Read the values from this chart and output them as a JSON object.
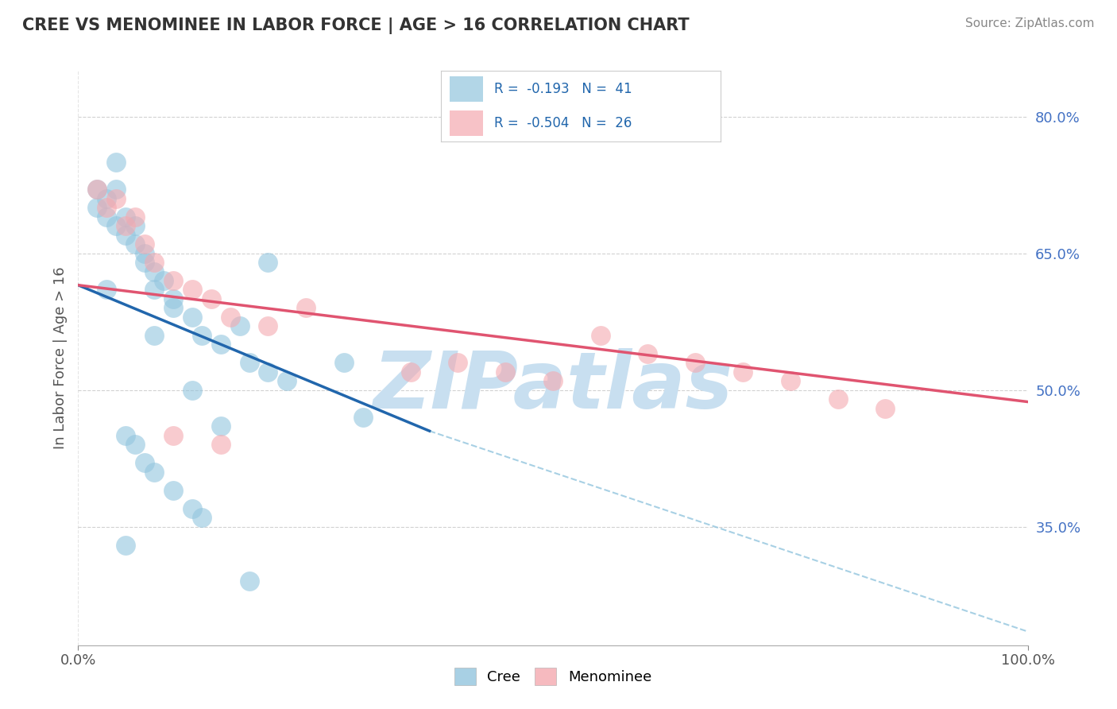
{
  "title": "CREE VS MENOMINEE IN LABOR FORCE | AGE > 16 CORRELATION CHART",
  "source": "Source: ZipAtlas.com",
  "ylabel": "In Labor Force | Age > 16",
  "xlim": [
    0.0,
    1.0
  ],
  "ylim": [
    0.22,
    0.85
  ],
  "cree_R": -0.193,
  "cree_N": 41,
  "menominee_R": -0.504,
  "menominee_N": 26,
  "cree_color": "#92c5de",
  "menominee_color": "#f4a9b0",
  "cree_line_color": "#2166ac",
  "menominee_line_color": "#e05470",
  "dashed_line_color": "#92c5de",
  "background_color": "#ffffff",
  "watermark_color": "#c8dff0",
  "grid_color": "#cccccc",
  "cree_scatter_x": [
    0.02,
    0.02,
    0.03,
    0.03,
    0.04,
    0.04,
    0.05,
    0.05,
    0.06,
    0.06,
    0.07,
    0.07,
    0.08,
    0.08,
    0.09,
    0.1,
    0.1,
    0.12,
    0.13,
    0.15,
    0.17,
    0.18,
    0.2,
    0.22,
    0.28,
    0.3,
    0.05,
    0.06,
    0.07,
    0.08,
    0.1,
    0.12,
    0.13,
    0.05,
    0.15,
    0.2,
    0.18,
    0.12,
    0.04,
    0.03,
    0.08
  ],
  "cree_scatter_y": [
    0.72,
    0.7,
    0.71,
    0.69,
    0.68,
    0.72,
    0.67,
    0.69,
    0.66,
    0.68,
    0.64,
    0.65,
    0.63,
    0.61,
    0.62,
    0.6,
    0.59,
    0.58,
    0.56,
    0.55,
    0.57,
    0.53,
    0.52,
    0.51,
    0.53,
    0.47,
    0.45,
    0.44,
    0.42,
    0.41,
    0.39,
    0.37,
    0.36,
    0.33,
    0.46,
    0.64,
    0.29,
    0.5,
    0.75,
    0.61,
    0.56
  ],
  "menominee_scatter_x": [
    0.02,
    0.03,
    0.04,
    0.05,
    0.06,
    0.07,
    0.08,
    0.1,
    0.12,
    0.14,
    0.16,
    0.2,
    0.24,
    0.55,
    0.6,
    0.65,
    0.7,
    0.75,
    0.8,
    0.85,
    0.35,
    0.4,
    0.45,
    0.5,
    0.15,
    0.1
  ],
  "menominee_scatter_y": [
    0.72,
    0.7,
    0.71,
    0.68,
    0.69,
    0.66,
    0.64,
    0.62,
    0.61,
    0.6,
    0.58,
    0.57,
    0.59,
    0.56,
    0.54,
    0.53,
    0.52,
    0.51,
    0.49,
    0.48,
    0.52,
    0.53,
    0.52,
    0.51,
    0.44,
    0.45
  ],
  "cree_line_x0": 0.0,
  "cree_line_x1": 0.37,
  "cree_line_y0": 0.615,
  "cree_line_y1": 0.455,
  "menominee_line_x0": 0.0,
  "menominee_line_x1": 1.0,
  "menominee_line_y0": 0.615,
  "menominee_line_y1": 0.487,
  "dashed_line_x0": 0.37,
  "dashed_line_x1": 1.0,
  "dashed_line_y0": 0.455,
  "dashed_line_y1": 0.235
}
